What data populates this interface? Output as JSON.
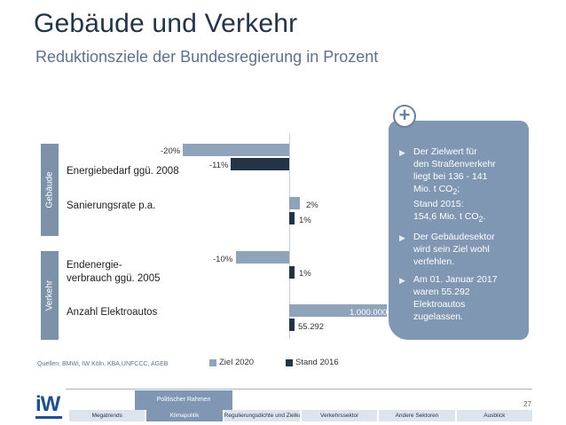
{
  "header": {
    "title": "Gebäude und Verkehr",
    "subtitle": "Reduktionsziele der Bundesregierung in Prozent"
  },
  "groups": {
    "gebaeude": "Gebäude",
    "verkehr": "Verkehr"
  },
  "chart_data": {
    "type": "bar",
    "orientation": "horizontal",
    "categories": [
      "Energiebedarf ggü. 2008",
      "Sanierungsrate p.a.",
      "Endenergie-verbrauch ggü. 2005",
      "Anzahl Elektroautos"
    ],
    "category_labels": {
      "energie": "Energiebedarf ggü. 2008",
      "sanierung": "Sanierungsrate p.a.",
      "endenergie_1": "Endenergie-",
      "endenergie_2": "verbrauch ggü. 2005",
      "elektro": "Anzahl Elektroautos"
    },
    "series": [
      {
        "name": "Ziel 2020",
        "values": [
          -20,
          2,
          -10,
          1000000
        ],
        "labels": [
          "-20%",
          "2%",
          "-10%",
          "1.000.000"
        ],
        "color": "#8fa3bb"
      },
      {
        "name": "Stand 2016",
        "values": [
          -11,
          1,
          1,
          55292
        ],
        "labels": [
          "-11%",
          "1%",
          "1%",
          "55.292"
        ],
        "color": "#243447"
      }
    ],
    "legend": {
      "ziel": "Ziel 2020",
      "stand": "Stand 2016"
    }
  },
  "sources": "Quellen: BMWi, IW Köln, KBA,UNFCCC, AGEB",
  "infobox": {
    "item1": {
      "l1": "Der Zielwert für",
      "l2": "den Straßenverkehr",
      "l3": "liegt bei 136 - 141",
      "l4a": "Mio. t CO",
      "l4sub": "2",
      "l4b": ";",
      "l5": "Stand 2015:",
      "l6a": "154,6 Mio. t CO",
      "l6sub": "2",
      "l6b": "."
    },
    "item2": [
      "Der Gebäudesektor",
      "wird sein Ziel wohl",
      "verfehlen."
    ],
    "item3": [
      "Am 01. Januar 2017",
      "waren 55.292",
      "Elektroautos",
      "zugelassen."
    ],
    "plus": "+"
  },
  "footer": {
    "logo": "iW",
    "page_number": "27",
    "active_section": "Politischer Rahmen",
    "tabs": [
      "Megatrends",
      "Klimapolitik",
      "Regulierungsdichte und Zielkonflikte",
      "Verkehrssektor",
      "Andere Sektoren",
      "Ausblick"
    ]
  }
}
